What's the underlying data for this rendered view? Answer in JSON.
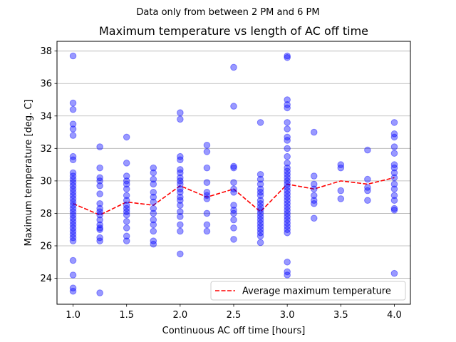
{
  "chart_data": {
    "type": "scatter",
    "suptitle": "Data only from between 2 PM and 6 PM",
    "title": "Maximum temperature vs length of AC off time",
    "xlabel": "Continuous AC off time [hours]",
    "ylabel": "Maximum temperature [deg. C]",
    "xlim": [
      0.85,
      4.15
    ],
    "ylim": [
      22.4,
      38.6
    ],
    "xticks": [
      1.0,
      1.5,
      2.0,
      2.5,
      3.0,
      3.5,
      4.0
    ],
    "xtick_labels": [
      "1.0",
      "1.5",
      "2.0",
      "2.5",
      "3.0",
      "3.5",
      "4.0"
    ],
    "yticks": [
      24,
      26,
      28,
      30,
      32,
      34,
      36,
      38
    ],
    "ytick_labels": [
      "24",
      "26",
      "28",
      "30",
      "32",
      "34",
      "36",
      "38"
    ],
    "grid": "horizontal",
    "legend_position": "bottom-right",
    "scatter_color": "#0000ff",
    "average_line_color": "#ff0000",
    "scatter_points": [
      {
        "x": 1.0,
        "y": [
          37.7,
          34.8,
          34.4,
          33.5,
          33.2,
          32.8,
          31.5,
          31.3,
          30.5,
          30.3,
          30.1,
          29.9,
          29.7,
          29.5,
          29.3,
          29.1,
          28.9,
          28.7,
          28.5,
          28.3,
          28.1,
          27.9,
          27.7,
          27.5,
          27.3,
          27.1,
          26.9,
          26.7,
          26.5,
          26.3,
          25.1,
          24.2,
          23.4,
          23.2
        ]
      },
      {
        "x": 1.25,
        "y": [
          32.1,
          30.8,
          30.2,
          30.0,
          29.7,
          29.2,
          28.6,
          28.3,
          28.1,
          27.9,
          27.6,
          27.3,
          27.1,
          27.0,
          26.5,
          26.3,
          23.1
        ]
      },
      {
        "x": 1.5,
        "y": [
          32.7,
          31.1,
          30.3,
          30.0,
          29.8,
          29.5,
          29.1,
          28.8,
          28.5,
          28.3,
          28.1,
          27.9,
          27.5,
          27.1,
          26.6,
          26.3
        ]
      },
      {
        "x": 1.75,
        "y": [
          30.8,
          30.5,
          30.1,
          29.8,
          29.3,
          29.0,
          28.7,
          28.3,
          28.0,
          27.6,
          27.3,
          26.9,
          26.3,
          26.1
        ]
      },
      {
        "x": 2.0,
        "y": [
          34.2,
          33.8,
          31.5,
          31.3,
          30.7,
          30.5,
          30.2,
          30.0,
          29.8,
          29.5,
          29.3,
          29.0,
          28.8,
          28.5,
          28.1,
          27.8,
          27.3,
          26.9,
          25.5
        ]
      },
      {
        "x": 2.25,
        "y": [
          32.2,
          31.8,
          30.8,
          29.9,
          29.3,
          29.1,
          28.9,
          28.0,
          27.3,
          26.9
        ]
      },
      {
        "x": 2.5,
        "y": [
          37.0,
          34.6,
          30.9,
          30.8,
          29.9,
          29.5,
          29.3,
          28.5,
          28.2,
          28.0,
          27.6,
          27.1,
          26.4
        ]
      },
      {
        "x": 2.75,
        "y": [
          33.6,
          30.4,
          30.1,
          29.8,
          29.5,
          29.3,
          29.1,
          28.8,
          28.6,
          28.4,
          28.2,
          28.0,
          27.8,
          27.6,
          27.4,
          27.2,
          27.0,
          26.8,
          26.6,
          26.2
        ]
      },
      {
        "x": 3.0,
        "y": [
          37.7,
          37.6,
          35.0,
          34.7,
          34.5,
          33.6,
          33.2,
          32.7,
          32.5,
          32.0,
          31.5,
          31.1,
          30.8,
          30.6,
          30.4,
          30.2,
          30.0,
          29.8,
          29.6,
          29.4,
          29.2,
          29.0,
          28.8,
          28.6,
          28.4,
          28.2,
          28.0,
          27.8,
          27.6,
          27.4,
          27.2,
          27.0,
          26.8,
          25.0,
          24.4,
          24.2
        ]
      },
      {
        "x": 3.25,
        "y": [
          33.0,
          30.3,
          29.8,
          29.5,
          29.1,
          28.8,
          28.6,
          27.7
        ]
      },
      {
        "x": 3.5,
        "y": [
          31.0,
          30.8,
          29.4,
          28.9
        ]
      },
      {
        "x": 3.75,
        "y": [
          31.9,
          30.1,
          29.6,
          29.4,
          28.8
        ]
      },
      {
        "x": 4.0,
        "y": [
          33.6,
          32.9,
          32.7,
          32.1,
          31.7,
          31.0,
          30.8,
          30.5,
          30.2,
          29.8,
          29.5,
          29.1,
          28.8,
          28.3,
          28.2,
          24.3
        ]
      }
    ],
    "average_line": {
      "name": "Average maximum temperature",
      "x": [
        1.0,
        1.25,
        1.5,
        1.75,
        2.0,
        2.25,
        2.5,
        2.75,
        3.0,
        3.25,
        3.5,
        3.75,
        4.0
      ],
      "y": [
        28.6,
        27.9,
        28.7,
        28.5,
        29.7,
        29.0,
        29.5,
        28.1,
        29.8,
        29.5,
        30.0,
        29.8,
        30.2
      ]
    }
  }
}
